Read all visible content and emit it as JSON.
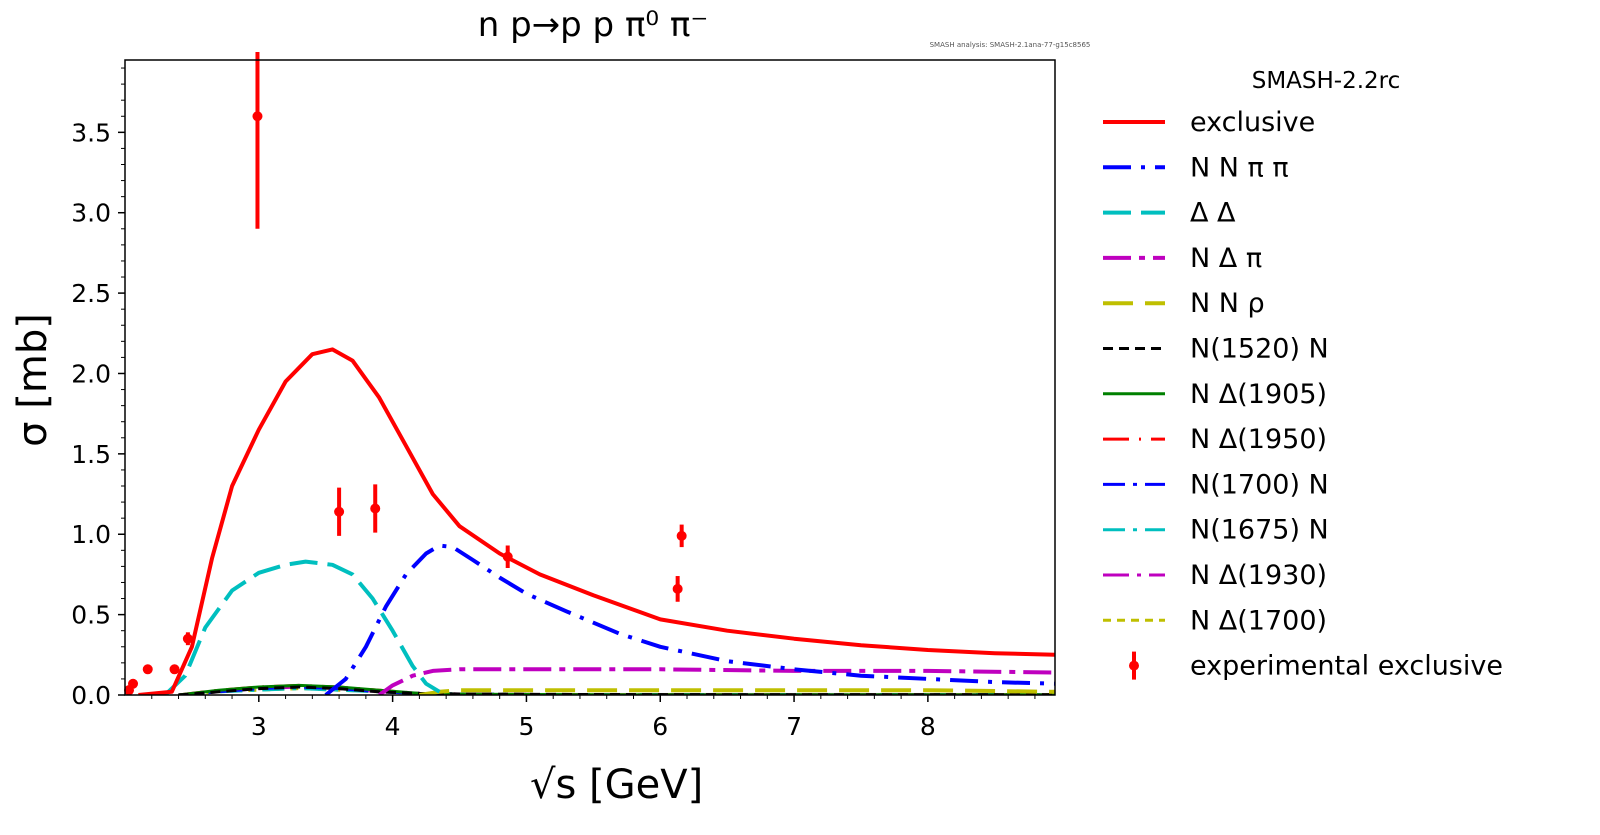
{
  "chart_data": {
    "type": "line",
    "title": "n p→p p π⁰ π⁻",
    "watermark": "SMASH analysis: SMASH-2.1ana-77-g15c8565",
    "xlabel": "√s [GeV]",
    "ylabel": "σ [mb]",
    "xlim": [
      2.0,
      8.95
    ],
    "ylim": [
      0,
      3.95
    ],
    "x_ticks": [
      3,
      4,
      5,
      6,
      7,
      8
    ],
    "y_ticks": [
      0.0,
      0.5,
      1.0,
      1.5,
      2.0,
      2.5,
      3.0,
      3.5
    ],
    "x_tick_labels": [
      "3",
      "4",
      "5",
      "6",
      "7",
      "8"
    ],
    "y_tick_labels": [
      "0.0",
      "0.5",
      "1.0",
      "1.5",
      "2.0",
      "2.5",
      "3.0",
      "3.5"
    ],
    "legend_title": "SMASH-2.2rc",
    "legend_placement": "outside right",
    "series": [
      {
        "name": "exclusive",
        "color": "#ff0000",
        "dash": "solid",
        "width": 4,
        "x": [
          2.1,
          2.35,
          2.5,
          2.65,
          2.8,
          3.0,
          3.2,
          3.4,
          3.55,
          3.7,
          3.9,
          4.1,
          4.3,
          4.5,
          4.8,
          5.1,
          5.5,
          6.0,
          6.5,
          7.0,
          7.5,
          8.0,
          8.5,
          8.95
        ],
        "y": [
          0.0,
          0.02,
          0.3,
          0.85,
          1.3,
          1.65,
          1.95,
          2.12,
          2.15,
          2.08,
          1.85,
          1.55,
          1.25,
          1.05,
          0.88,
          0.75,
          0.62,
          0.47,
          0.4,
          0.35,
          0.31,
          0.28,
          0.26,
          0.25
        ]
      },
      {
        "name": "N N π π",
        "color": "#0000ff",
        "dash": "28 10 4 10",
        "width": 4,
        "x": [
          3.5,
          3.65,
          3.8,
          3.95,
          4.1,
          4.25,
          4.35,
          4.45,
          4.6,
          4.8,
          5.0,
          5.3,
          5.7,
          6.0,
          6.5,
          7.0,
          7.5,
          8.0,
          8.5,
          8.95
        ],
        "y": [
          0.0,
          0.1,
          0.3,
          0.55,
          0.75,
          0.88,
          0.93,
          0.92,
          0.84,
          0.73,
          0.63,
          0.52,
          0.38,
          0.3,
          0.21,
          0.16,
          0.12,
          0.1,
          0.08,
          0.07
        ]
      },
      {
        "name": "Δ Δ",
        "color": "#00bfbf",
        "dash": "28 10",
        "width": 4,
        "x": [
          2.3,
          2.45,
          2.6,
          2.8,
          3.0,
          3.2,
          3.35,
          3.55,
          3.7,
          3.85,
          4.0,
          4.15,
          4.25,
          4.35
        ],
        "y": [
          0.0,
          0.12,
          0.42,
          0.65,
          0.76,
          0.81,
          0.83,
          0.81,
          0.75,
          0.6,
          0.4,
          0.18,
          0.07,
          0.02
        ]
      },
      {
        "name": "N Δ π",
        "color": "#bf00bf",
        "dash": "28 8 6 8",
        "width": 4,
        "x": [
          3.9,
          4.0,
          4.15,
          4.3,
          4.5,
          5.0,
          6.0,
          7.0,
          8.0,
          8.95
        ],
        "y": [
          0.0,
          0.06,
          0.12,
          0.15,
          0.16,
          0.16,
          0.16,
          0.15,
          0.15,
          0.14
        ]
      },
      {
        "name": "N N ρ",
        "color": "#bfbf00",
        "dash": "30 12",
        "width": 4,
        "x": [
          4.2,
          4.35,
          4.5,
          5.0,
          6.0,
          7.0,
          8.0,
          8.95
        ],
        "y": [
          0.0,
          0.02,
          0.03,
          0.03,
          0.03,
          0.03,
          0.03,
          0.02
        ]
      },
      {
        "name": "N(1520) N",
        "color": "#000000",
        "dash": "10 6",
        "width": 3,
        "x": [
          2.4,
          2.7,
          3.0,
          3.3,
          3.6,
          3.9,
          4.2,
          4.6,
          5.5,
          6.5,
          7.5,
          8.95
        ],
        "y": [
          0.0,
          0.02,
          0.04,
          0.05,
          0.04,
          0.02,
          0.01,
          0.005,
          0.003,
          0.002,
          0.002,
          0.001
        ]
      },
      {
        "name": "N Δ(1905)",
        "color": "#008000",
        "dash": "solid",
        "width": 3,
        "x": [
          2.4,
          2.7,
          3.0,
          3.3,
          3.6,
          3.9,
          4.2,
          4.6,
          5.5,
          8.95
        ],
        "y": [
          0.0,
          0.03,
          0.05,
          0.06,
          0.05,
          0.03,
          0.01,
          0.005,
          0.002,
          0.001
        ]
      },
      {
        "name": "N Δ(1950)",
        "color": "#ff0000",
        "dash": "26 10 2 10",
        "width": 3,
        "x": [
          2.4,
          2.7,
          3.0,
          3.3,
          3.6,
          3.9,
          4.2,
          4.6,
          5.5,
          8.95
        ],
        "y": [
          0.0,
          0.03,
          0.05,
          0.06,
          0.05,
          0.03,
          0.01,
          0.005,
          0.002,
          0.001
        ]
      },
      {
        "name": "N(1700) N",
        "color": "#0000ff",
        "dash": "22 8 4 8",
        "width": 3,
        "x": [
          2.4,
          2.7,
          3.0,
          3.3,
          3.6,
          3.9,
          4.2,
          4.6,
          5.5,
          8.95
        ],
        "y": [
          0.0,
          0.02,
          0.04,
          0.05,
          0.04,
          0.02,
          0.01,
          0.005,
          0.002,
          0.001
        ]
      },
      {
        "name": "N(1675) N",
        "color": "#00bfbf",
        "dash": "22 8 4 8",
        "width": 3,
        "x": [
          2.4,
          2.7,
          3.0,
          3.3,
          3.6,
          3.9,
          4.2,
          4.6,
          5.5,
          8.95
        ],
        "y": [
          0.0,
          0.02,
          0.03,
          0.04,
          0.03,
          0.02,
          0.01,
          0.005,
          0.002,
          0.001
        ]
      },
      {
        "name": "N Δ(1930)",
        "color": "#bf00bf",
        "dash": "26 8 4 8",
        "width": 3,
        "x": [
          2.4,
          2.7,
          3.0,
          3.3,
          3.6,
          3.9,
          4.2,
          4.6,
          5.5,
          8.95
        ],
        "y": [
          0.0,
          0.02,
          0.04,
          0.05,
          0.04,
          0.02,
          0.01,
          0.005,
          0.002,
          0.001
        ]
      },
      {
        "name": "N Δ(1700)",
        "color": "#bfbf00",
        "dash": "8 6",
        "width": 3,
        "x": [
          2.4,
          2.7,
          3.0,
          3.3,
          3.6,
          3.9,
          4.2,
          4.6,
          5.5,
          8.95
        ],
        "y": [
          0.0,
          0.02,
          0.03,
          0.04,
          0.03,
          0.02,
          0.01,
          0.005,
          0.002,
          0.001
        ]
      }
    ],
    "experimental": {
      "name": "experimental exclusive",
      "color": "#ff0000",
      "points": [
        {
          "x": 2.03,
          "y": 0.03,
          "err": 0.02
        },
        {
          "x": 2.06,
          "y": 0.07,
          "err": 0.02
        },
        {
          "x": 2.17,
          "y": 0.16,
          "err": 0.02
        },
        {
          "x": 2.37,
          "y": 0.16,
          "err": 0.02
        },
        {
          "x": 2.47,
          "y": 0.35,
          "err": 0.04
        },
        {
          "x": 2.99,
          "y": 3.6,
          "err": 0.7
        },
        {
          "x": 3.6,
          "y": 1.14,
          "err": 0.15
        },
        {
          "x": 3.87,
          "y": 1.16,
          "err": 0.15
        },
        {
          "x": 4.86,
          "y": 0.86,
          "err": 0.07
        },
        {
          "x": 6.13,
          "y": 0.66,
          "err": 0.08
        },
        {
          "x": 6.16,
          "y": 0.99,
          "err": 0.07
        }
      ]
    }
  }
}
